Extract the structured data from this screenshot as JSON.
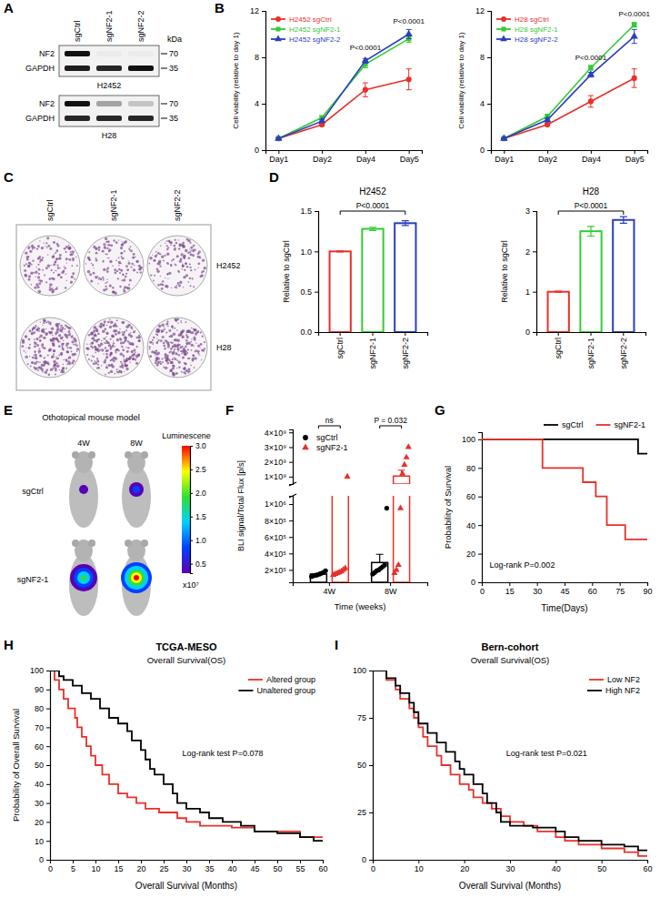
{
  "panel_letters": [
    "A",
    "B",
    "C",
    "D",
    "E",
    "F",
    "G",
    "H",
    "I"
  ],
  "blot": {
    "lanes": [
      "sgCtrl",
      "sgNF2-1",
      "sgNF2-2"
    ],
    "unit": "kDa",
    "blots": [
      {
        "cell_line": "H2452",
        "rows": [
          {
            "protein": "NF2",
            "size": 70,
            "intensity": [
              1,
              0.03,
              0.03
            ]
          },
          {
            "protein": "GAPDH",
            "size": 35,
            "intensity": [
              0.95,
              0.9,
              1
            ]
          }
        ]
      },
      {
        "cell_line": "H28",
        "rows": [
          {
            "protein": "NF2",
            "size": 70,
            "intensity": [
              1,
              0.35,
              0.2
            ]
          },
          {
            "protein": "GAPDH",
            "size": 35,
            "intensity": [
              0.9,
              0.9,
              0.9
            ]
          }
        ]
      }
    ]
  },
  "colony": {
    "lanes": [
      "sgCtrl",
      "sgNF2-1",
      "sgNF2-2"
    ],
    "cell_lines": [
      "H2452",
      "H28"
    ]
  },
  "mouse": {
    "title": "Othotopical mouse model",
    "timepoints": [
      "4W",
      "8W"
    ],
    "groups": [
      "sgCtrl",
      "sgNF2-1"
    ],
    "colorbar": {
      "title": "Luminescene",
      "range": [
        0.3,
        3.0
      ],
      "ticks": [
        0.5,
        {
          "value": 1,
          "label": "1.0"
        },
        1.5,
        {
          "value": 2,
          "label": "2.0"
        },
        2.5,
        {
          "value": 3,
          "label": "3.0"
        }
      ],
      "multiplier": "x10⁷"
    }
  },
  "chart_data": [
    {
      "type": "line",
      "y_label": "Cell viability (relative to day 1)",
      "categories": [
        "Day1",
        "Day2",
        "Day4",
        "Day5"
      ],
      "ylim": [
        0,
        12
      ],
      "yticks": [
        0,
        4,
        8,
        12
      ],
      "legend": "upper left",
      "series": [
        {
          "name": "H2452 sgCtrl",
          "color": "#e8302a",
          "marker": "circle",
          "values": [
            1,
            2.2,
            5.2,
            6.1
          ],
          "errors": [
            0.05,
            0.1,
            0.6,
            0.9
          ]
        },
        {
          "name": "H2452 sgNF2-1",
          "color": "#33cc33",
          "marker": "square",
          "values": [
            1,
            2.8,
            7.4,
            9.6
          ],
          "errors": [
            0.05,
            0.15,
            0.3,
            0.3
          ]
        },
        {
          "name": "H2452 sgNF2-2",
          "color": "#2b3fbf",
          "marker": "triangle",
          "values": [
            1,
            2.5,
            7.7,
            10.0
          ],
          "errors": [
            0.05,
            0.1,
            0.2,
            0.4
          ]
        }
      ],
      "annotations": [
        {
          "text": "P<0.0001",
          "x": "Day4",
          "y": 8.6
        },
        {
          "text": "P<0.0001",
          "x": "Day5",
          "y": 10.9
        }
      ]
    },
    {
      "type": "line",
      "y_label": "Cell viability (relative to day 1)",
      "categories": [
        "Day1",
        "Day2",
        "Day4",
        "Day5"
      ],
      "ylim": [
        0,
        12
      ],
      "yticks": [
        0,
        4,
        8,
        12
      ],
      "legend": "upper left",
      "series": [
        {
          "name": "H28 sgCtrl",
          "color": "#e8302a",
          "marker": "circle",
          "values": [
            1,
            2.2,
            4.2,
            6.2
          ],
          "errors": [
            0.05,
            0.1,
            0.5,
            0.8
          ]
        },
        {
          "name": "H28 sgNF2-1",
          "color": "#33cc33",
          "marker": "square",
          "values": [
            1,
            2.9,
            7.1,
            10.8
          ],
          "errors": [
            0.05,
            0.2,
            0.2,
            0.2
          ]
        },
        {
          "name": "H28 sgNF2-2",
          "color": "#2b3fbf",
          "marker": "triangle",
          "values": [
            1,
            2.6,
            6.5,
            9.8
          ],
          "errors": [
            0.05,
            0.15,
            0.2,
            0.6
          ]
        }
      ],
      "annotations": [
        {
          "text": "P<0.0001",
          "x": "Day4",
          "y": 7.8
        },
        {
          "text": "P<0.0001",
          "x": "Day5",
          "y": 11.5
        }
      ]
    },
    {
      "type": "bar",
      "title": "H2452",
      "y_label": "Relative to sgCtrl",
      "categories": [
        "sgCtrl",
        "sgNF2-1",
        "sgNF2-2"
      ],
      "values": [
        1.0,
        1.28,
        1.35
      ],
      "errors": [
        0.005,
        0.02,
        0.03
      ],
      "colors": [
        "#e8302a",
        "#33cc33",
        "#2b3fbf"
      ],
      "ylim": [
        0,
        1.5
      ],
      "yticks": [
        {
          "value": 0,
          "label": "0.0"
        },
        0.5,
        {
          "value": 1,
          "label": "1.0"
        },
        1.5
      ],
      "annotations": [
        {
          "text": "P<0.0001",
          "bracket": [
            "sgCtrl",
            "sgNF2-2"
          ],
          "y": 1.5
        }
      ]
    },
    {
      "type": "bar",
      "title": "H28",
      "y_label": "Relative to sgCtrl",
      "categories": [
        "sgCtrl",
        "sgNF2-1",
        "sgNF2-2"
      ],
      "values": [
        1.0,
        2.5,
        2.78
      ],
      "errors": [
        0.01,
        0.12,
        0.08
      ],
      "colors": [
        "#e8302a",
        "#33cc33",
        "#2b3fbf"
      ],
      "ylim": [
        0,
        3
      ],
      "yticks": [
        0,
        1,
        2,
        3
      ],
      "annotations": [
        {
          "text": "P<0.0001",
          "bracket": [
            "sgCtrl",
            "sgNF2-2"
          ],
          "y": 3
        }
      ]
    },
    {
      "type": "bar_scatter",
      "x_label": "Time (weeks)",
      "y_label": "BLI signal/Total Flux [p/s]",
      "categories": [
        "4W",
        "8W"
      ],
      "legend": "upper left",
      "y_segments": [
        {
          "ylim": [
            50000,
            1100000
          ],
          "yticks": [
            {
              "value": 200000,
              "label": "2×10⁵"
            },
            {
              "value": 400000,
              "label": "4×10⁵"
            },
            {
              "value": 600000,
              "label": "6×10⁵"
            },
            {
              "value": 800000,
              "label": "8×10⁵"
            },
            {
              "value": 1000000,
              "label": "1×10⁶"
            }
          ]
        },
        {
          "ylim": [
            500000000,
            4200000000
          ],
          "yticks": [
            {
              "value": 1000000000,
              "label": "1×10⁹"
            },
            {
              "value": 2000000000,
              "label": "2×10⁹"
            },
            {
              "value": 3000000000,
              "label": "3×10⁹"
            },
            {
              "value": 4000000000,
              "label": "4×10⁹"
            }
          ]
        }
      ],
      "series": [
        {
          "name": "sgCtrl",
          "color": "#000000",
          "marker": "circle",
          "values": [
            150000,
            290000
          ],
          "errors": [
            8000,
            100000
          ],
          "points": [
            [
              120000,
              130000,
              135000,
              140000,
              150000,
              160000,
              170000,
              190000
            ],
            [
              150000,
              170000,
              190000,
              200000,
              220000,
              240000,
              260000,
              950000
            ]
          ]
        },
        {
          "name": "sgNF2-1",
          "color": "#e8302a",
          "marker": "triangle",
          "values": [
            125000000,
            1040000000
          ],
          "errors": [
            125000000,
            400000000
          ],
          "points": [
            [
              140000,
              150000,
              160000,
              170000,
              180000,
              200000,
              220000,
              1000000000
            ],
            [
              160000,
              200000,
              260000,
              950000,
              1200000000,
              1800000000,
              2300000000,
              3000000000
            ]
          ]
        }
      ],
      "annotations": [
        {
          "text": "ns",
          "x": "4W"
        },
        {
          "text": "P = 0.032",
          "x": "8W"
        }
      ]
    },
    {
      "type": "step",
      "x_label": "Time(Days)",
      "y_label": "Probability of Survival",
      "xlim": [
        0,
        90
      ],
      "xticks": [
        0,
        15,
        30,
        45,
        60,
        75,
        90
      ],
      "ylim": [
        0,
        105
      ],
      "yticks": [
        0,
        20,
        40,
        60,
        80,
        100
      ],
      "legend": "top",
      "series": [
        {
          "name": "sgCtrl",
          "color": "#000000",
          "x": [
            0,
            85,
            90
          ],
          "values": [
            100,
            90,
            90
          ]
        },
        {
          "name": "sgNF2-1",
          "color": "#e8302a",
          "x": [
            0,
            33,
            55,
            62,
            68,
            78,
            90
          ],
          "values": [
            100,
            80,
            70,
            60,
            40,
            30,
            30
          ]
        }
      ],
      "annotations": [
        {
          "text": "Log-rank P=0.002",
          "x": 22,
          "y": 10
        }
      ]
    },
    {
      "type": "step",
      "title": "TCGA-MESO",
      "subtitle": "Overall Survival(OS)",
      "x_label": "Overall Survival (Months)",
      "y_label": "Probability of Overall Survival",
      "xlim": [
        0,
        60
      ],
      "xticks": [
        0,
        5,
        10,
        15,
        20,
        25,
        30,
        35,
        40,
        45,
        50,
        55,
        60
      ],
      "ylim": [
        0,
        100
      ],
      "yticks": [
        0,
        10,
        20,
        30,
        40,
        50,
        60,
        70,
        80,
        90,
        100
      ],
      "legend": "upper right",
      "series": [
        {
          "name": "Altered group",
          "color": "#e8302a",
          "x": [
            0,
            1,
            2,
            3,
            4,
            5.5,
            6,
            7,
            8,
            9,
            10,
            11.5,
            13,
            15,
            17,
            19,
            21,
            24,
            28,
            30,
            33,
            40,
            45,
            55,
            60
          ],
          "values": [
            100,
            95,
            90,
            85,
            80,
            75,
            70,
            65,
            60,
            55,
            50,
            45,
            40,
            35,
            33,
            30,
            27,
            25,
            22,
            20,
            18,
            17,
            15,
            12,
            12
          ]
        },
        {
          "name": "Unaltered group",
          "color": "#000000",
          "x": [
            0,
            2,
            3,
            5,
            7,
            9,
            11,
            13,
            15,
            17,
            18,
            20,
            21,
            22,
            23,
            25,
            27,
            28,
            30,
            33,
            35,
            38,
            42,
            45,
            50,
            55,
            58,
            60
          ],
          "values": [
            100,
            97,
            95,
            92,
            88,
            85,
            80,
            75,
            72,
            68,
            63,
            58,
            53,
            48,
            45,
            40,
            35,
            30,
            27,
            25,
            22,
            20,
            18,
            15,
            14,
            12,
            10,
            10
          ]
        }
      ],
      "annotations": [
        {
          "text": "Log-rank test P=0.078",
          "x": 38,
          "y": 55
        }
      ]
    },
    {
      "type": "step",
      "title": "Bern-cohort",
      "subtitle": "Overall Survival(OS)",
      "x_label": "Overall Survival (Months)",
      "xlim": [
        0,
        60
      ],
      "xticks": [
        0,
        10,
        20,
        30,
        40,
        50,
        60
      ],
      "ylim": [
        0,
        100
      ],
      "yticks": [
        0,
        25,
        50,
        75,
        100
      ],
      "legend": "upper right",
      "series": [
        {
          "name": "Low NF2",
          "color": "#e8302a",
          "x": [
            0,
            3,
            5,
            6,
            8,
            9,
            10,
            11,
            12,
            14,
            15,
            17,
            19,
            21,
            22,
            24,
            26,
            28,
            30,
            33,
            36,
            40,
            42,
            45,
            50,
            55,
            58,
            60
          ],
          "values": [
            100,
            95,
            90,
            85,
            80,
            75,
            70,
            65,
            60,
            55,
            50,
            45,
            40,
            37,
            33,
            30,
            27,
            23,
            20,
            18,
            15,
            12,
            10,
            8,
            6,
            4,
            2,
            2
          ]
        },
        {
          "name": "High NF2",
          "color": "#000000",
          "x": [
            0,
            3,
            5,
            6,
            8,
            9,
            10,
            12,
            14,
            16,
            18,
            19,
            20,
            22,
            24,
            25,
            27,
            28,
            30,
            35,
            40,
            42,
            45,
            50,
            55,
            58,
            60
          ],
          "values": [
            100,
            96,
            92,
            88,
            83,
            78,
            72,
            67,
            62,
            57,
            52,
            48,
            45,
            40,
            35,
            30,
            25,
            20,
            18,
            17,
            15,
            12,
            10,
            8,
            7,
            5,
            5
          ]
        }
      ],
      "annotations": [
        {
          "text": "Log-rank test P=0.021",
          "x": 38,
          "y": 55
        }
      ]
    }
  ]
}
